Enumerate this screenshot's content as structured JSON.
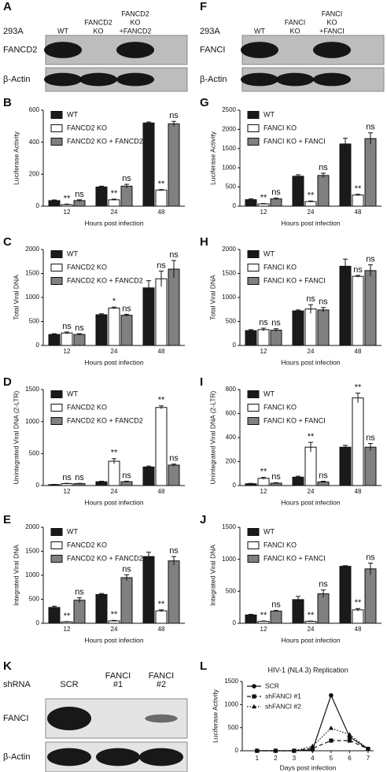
{
  "chart_data": [
    {
      "type": "bar",
      "panel": "B",
      "ylabel": "Luciferase Activity",
      "xlabel": "Hours post infection",
      "categories": [
        "12",
        "24",
        "48"
      ],
      "ylim": [
        0,
        600
      ],
      "yticks": [
        0,
        200,
        400,
        600
      ],
      "series": [
        {
          "name": "WT",
          "color": "#1a1a1a",
          "values": [
            35,
            120,
            520
          ],
          "errors": [
            4,
            5,
            6
          ]
        },
        {
          "name": "FANCD2 KO",
          "color": "#ffffff",
          "values": [
            10,
            40,
            100
          ],
          "errors": [
            3,
            4,
            4
          ],
          "significance": [
            "**",
            "**",
            "**"
          ]
        },
        {
          "name": "FANCD2 KO + FANCD2",
          "color": "#808080",
          "values": [
            35,
            125,
            515
          ],
          "errors": [
            5,
            12,
            15
          ],
          "significance": [
            "ns",
            "ns",
            "ns"
          ]
        }
      ]
    },
    {
      "type": "bar",
      "panel": "C",
      "ylabel": "Total Viral DNA",
      "xlabel": "Hours post infection",
      "categories": [
        "12",
        "24",
        "48"
      ],
      "ylim": [
        0,
        2000
      ],
      "yticks": [
        0,
        500,
        1000,
        1500,
        2000
      ],
      "series": [
        {
          "name": "WT",
          "color": "#1a1a1a",
          "values": [
            230,
            640,
            1200
          ],
          "errors": [
            15,
            20,
            150
          ]
        },
        {
          "name": "FANCD2 KO",
          "color": "#ffffff",
          "values": [
            260,
            780,
            1390
          ],
          "errors": [
            20,
            20,
            160
          ],
          "significance": [
            "ns",
            "*",
            "ns"
          ]
        },
        {
          "name": "FANCD2 KO + FANCD2",
          "color": "#808080",
          "values": [
            230,
            630,
            1590
          ],
          "errors": [
            15,
            20,
            180
          ],
          "significance": [
            "ns",
            "ns",
            "ns"
          ]
        }
      ]
    },
    {
      "type": "bar",
      "panel": "D",
      "ylabel": "Unintegrated Viral DNA (2-LTR)",
      "xlabel": "Hours post infection",
      "categories": [
        "12",
        "24",
        "48"
      ],
      "ylim": [
        0,
        1500
      ],
      "yticks": [
        0,
        500,
        1000,
        1500
      ],
      "series": [
        {
          "name": "WT",
          "color": "#1a1a1a",
          "values": [
            15,
            60,
            290
          ],
          "errors": [
            3,
            8,
            15
          ]
        },
        {
          "name": "FANCD2 KO",
          "color": "#ffffff",
          "values": [
            30,
            380,
            1220
          ],
          "errors": [
            5,
            40,
            25
          ],
          "significance": [
            "ns",
            "**",
            "**"
          ]
        },
        {
          "name": "FANCD2 KO + FANCD2",
          "color": "#808080",
          "values": [
            30,
            60,
            320
          ],
          "errors": [
            5,
            8,
            15
          ],
          "significance": [
            "ns",
            "ns",
            "ns"
          ]
        }
      ]
    },
    {
      "type": "bar",
      "panel": "E",
      "ylabel": "Integrated Viral DNA",
      "xlabel": "Hours post infection",
      "categories": [
        "12",
        "24",
        "48"
      ],
      "ylim": [
        0,
        2000
      ],
      "yticks": [
        0,
        500,
        1000,
        1500,
        2000
      ],
      "series": [
        {
          "name": "WT",
          "color": "#1a1a1a",
          "values": [
            330,
            600,
            1390
          ],
          "errors": [
            25,
            20,
            90
          ]
        },
        {
          "name": "FANCD2 KO",
          "color": "#ffffff",
          "values": [
            30,
            50,
            260
          ],
          "errors": [
            5,
            10,
            20
          ],
          "significance": [
            "**",
            "**",
            "**"
          ]
        },
        {
          "name": "FANCD2 KO + FANCD2",
          "color": "#808080",
          "values": [
            480,
            950,
            1300
          ],
          "errors": [
            50,
            60,
            90
          ],
          "significance": [
            "ns",
            "ns",
            "ns"
          ]
        }
      ]
    },
    {
      "type": "bar",
      "panel": "G",
      "ylabel": "Luciferase Activity",
      "xlabel": "Hours post infection",
      "categories": [
        "12",
        "24",
        "48"
      ],
      "ylim": [
        0,
        2500
      ],
      "yticks": [
        0,
        500,
        1000,
        1500,
        2000,
        2500
      ],
      "series": [
        {
          "name": "WT",
          "color": "#1a1a1a",
          "values": [
            170,
            780,
            1620
          ],
          "errors": [
            20,
            40,
            150
          ]
        },
        {
          "name": "FANCI KO",
          "color": "#ffffff",
          "values": [
            60,
            120,
            290
          ],
          "errors": [
            10,
            15,
            20
          ],
          "significance": [
            "**",
            "**",
            "**"
          ]
        },
        {
          "name": "FANCI KO + FANCI",
          "color": "#808080",
          "values": [
            190,
            800,
            1760
          ],
          "errors": [
            20,
            60,
            150
          ],
          "significance": [
            "ns",
            "ns",
            "ns"
          ]
        }
      ]
    },
    {
      "type": "bar",
      "panel": "H",
      "ylabel": "Total Viral DNA",
      "xlabel": "Hours post infection",
      "categories": [
        "12",
        "24",
        "48"
      ],
      "ylim": [
        0,
        2000
      ],
      "yticks": [
        0,
        500,
        1000,
        1500,
        2000
      ],
      "series": [
        {
          "name": "WT",
          "color": "#1a1a1a",
          "values": [
            310,
            720,
            1650
          ],
          "errors": [
            20,
            20,
            150
          ]
        },
        {
          "name": "FANCI KO",
          "color": "#ffffff",
          "values": [
            330,
            760,
            1440
          ],
          "errors": [
            30,
            90,
            20
          ],
          "significance": [
            "ns",
            "ns",
            "ns"
          ]
        },
        {
          "name": "FANCI KO + FANCI",
          "color": "#808080",
          "values": [
            320,
            740,
            1560
          ],
          "errors": [
            30,
            50,
            120
          ],
          "significance": [
            "ns",
            "ns",
            "ns"
          ]
        }
      ]
    },
    {
      "type": "bar",
      "panel": "I",
      "ylabel": "Unintegrated Viral DNA (2-LTR)",
      "xlabel": "Hours post infection",
      "categories": [
        "12",
        "24",
        "48"
      ],
      "ylim": [
        0,
        800
      ],
      "yticks": [
        0,
        200,
        400,
        600,
        800
      ],
      "series": [
        {
          "name": "WT",
          "color": "#1a1a1a",
          "values": [
            15,
            70,
            320
          ],
          "errors": [
            3,
            8,
            15
          ]
        },
        {
          "name": "FANCI KO",
          "color": "#ffffff",
          "values": [
            60,
            320,
            730
          ],
          "errors": [
            8,
            40,
            40
          ],
          "significance": [
            "**",
            "**",
            "**"
          ]
        },
        {
          "name": "FANCI KO + FANCI",
          "color": "#808080",
          "values": [
            20,
            30,
            320
          ],
          "errors": [
            4,
            6,
            30
          ],
          "significance": [
            "ns",
            "ns",
            "ns"
          ]
        }
      ]
    },
    {
      "type": "bar",
      "panel": "J",
      "ylabel": "Integrated Viral DNA",
      "xlabel": "Hours post infection",
      "categories": [
        "12",
        "24",
        "48"
      ],
      "ylim": [
        0,
        1500
      ],
      "yticks": [
        0,
        500,
        1000,
        1500
      ],
      "series": [
        {
          "name": "WT",
          "color": "#1a1a1a",
          "values": [
            130,
            370,
            890
          ],
          "errors": [
            10,
            50,
            10
          ]
        },
        {
          "name": "FANCI KO",
          "color": "#ffffff",
          "values": [
            30,
            30,
            210
          ],
          "errors": [
            5,
            5,
            20
          ],
          "significance": [
            "**",
            "**",
            "**"
          ]
        },
        {
          "name": "FANCI KO + FANCI",
          "color": "#808080",
          "values": [
            190,
            460,
            850
          ],
          "errors": [
            10,
            60,
            90
          ],
          "significance": [
            "ns",
            "ns",
            "ns"
          ]
        }
      ]
    },
    {
      "type": "line",
      "panel": "L",
      "title": "HIV-1 (NL4.3) Replication",
      "ylabel": "Luciferase Activity",
      "xlabel": "Days post infection",
      "x": [
        1,
        2,
        3,
        4,
        5,
        6,
        7
      ],
      "xlim": [
        0.2,
        7.3
      ],
      "xticks": [
        1,
        2,
        3,
        4,
        5,
        6,
        7
      ],
      "ylim": [
        0,
        1500
      ],
      "yticks": [
        0,
        500,
        1000,
        1500
      ],
      "series": [
        {
          "name": "SCR",
          "color": "#111111",
          "marker": "circle",
          "dash": "solid",
          "values": [
            0,
            0,
            0,
            20,
            1200,
            300,
            40
          ]
        },
        {
          "name": "shFANCI #1",
          "color": "#111111",
          "marker": "square",
          "dash": "dashed",
          "values": [
            0,
            0,
            0,
            50,
            220,
            220,
            40
          ]
        },
        {
          "name": "shFANCI #2",
          "color": "#111111",
          "marker": "triangle",
          "dash": "dotted",
          "values": [
            0,
            0,
            0,
            100,
            490,
            350,
            40
          ]
        }
      ]
    }
  ],
  "blots": [
    {
      "panel": "A",
      "header": "293A",
      "lanes": [
        [
          "WT"
        ],
        [
          "FANCD2",
          "KO"
        ],
        [
          "FANCD2",
          "KO",
          "+FANCD2"
        ]
      ],
      "rows": [
        "FANCD2",
        "β-Actin"
      ]
    },
    {
      "panel": "F",
      "header": "293A",
      "lanes": [
        [
          "WT"
        ],
        [
          "FANCI",
          "KO"
        ],
        [
          "FANCI",
          "KO",
          "+FANCI"
        ]
      ],
      "rows": [
        "FANCI",
        "β-Actin"
      ]
    },
    {
      "panel": "K",
      "header": "shRNA",
      "lanes": [
        [
          "SCR"
        ],
        [
          "FANCI",
          "#1"
        ],
        [
          "FANCI",
          "#2"
        ]
      ],
      "rows": [
        "FANCI",
        "β-Actin"
      ]
    }
  ]
}
